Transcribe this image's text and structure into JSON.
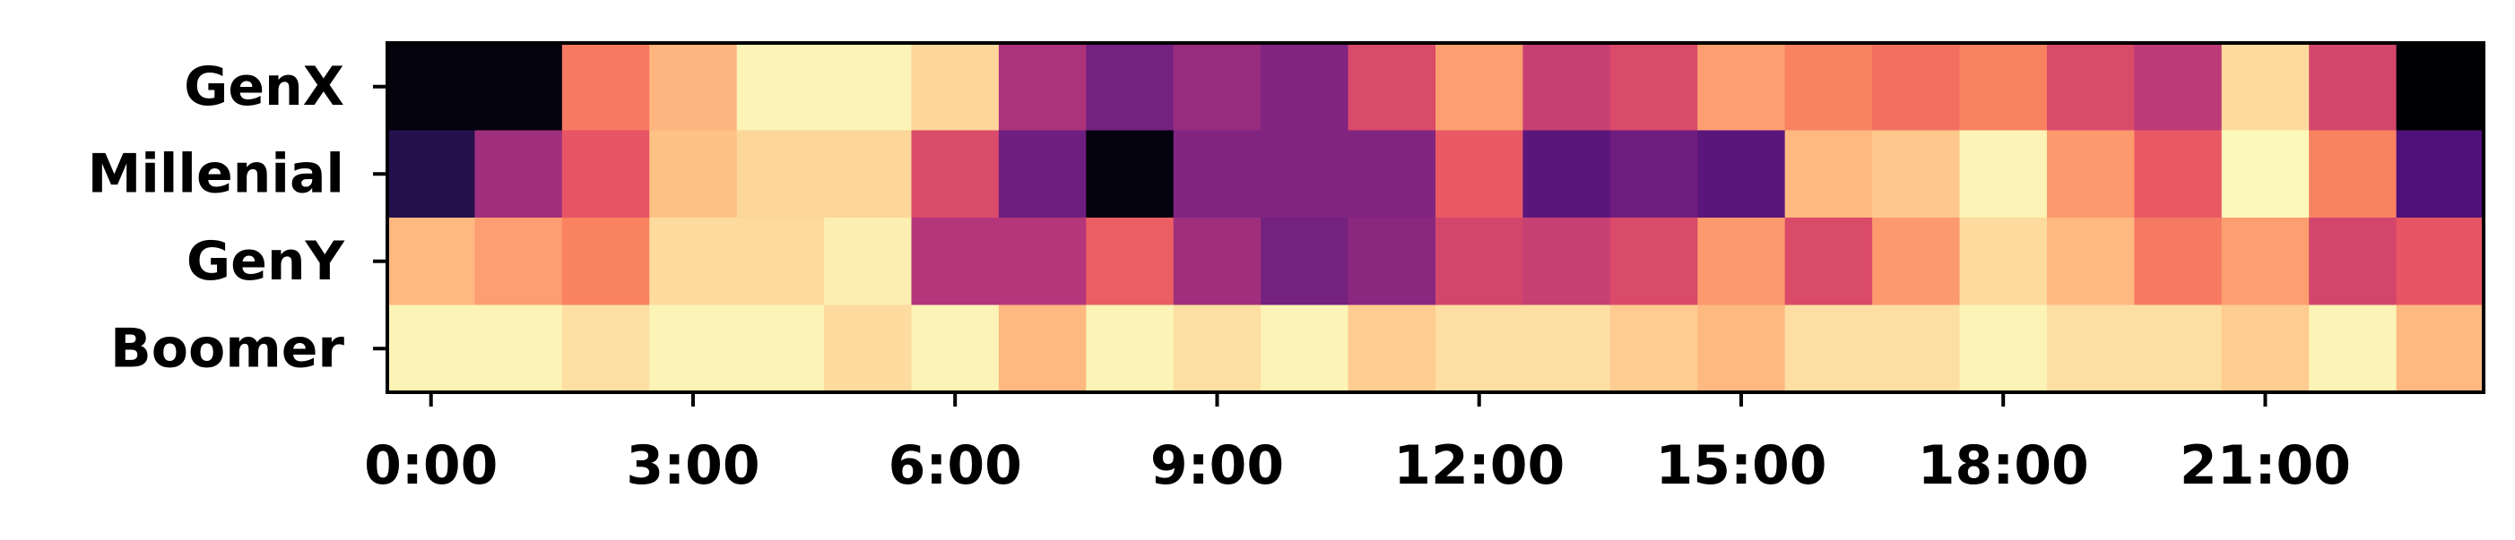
{
  "chart_data": {
    "type": "heatmap",
    "colormap": "magma",
    "value_range": [
      0,
      1
    ],
    "rows": [
      "GenX",
      "Millenial",
      "GenY",
      "Boomer"
    ],
    "columns": [
      "0:00",
      "1:00",
      "2:00",
      "3:00",
      "4:00",
      "5:00",
      "6:00",
      "7:00",
      "8:00",
      "9:00",
      "10:00",
      "11:00",
      "12:00",
      "13:00",
      "14:00",
      "15:00",
      "16:00",
      "17:00",
      "18:00",
      "19:00",
      "20:00",
      "21:00",
      "22:00",
      "23:00"
    ],
    "x_tick_labels": [
      "0:00",
      "3:00",
      "6:00",
      "9:00",
      "12:00",
      "15:00",
      "18:00",
      "21:00"
    ],
    "x_tick_columns": [
      0,
      3,
      6,
      9,
      12,
      15,
      18,
      21
    ],
    "values": [
      [
        0.02,
        0.02,
        0.72,
        0.85,
        0.98,
        0.98,
        0.92,
        0.48,
        0.35,
        0.43,
        0.38,
        0.6,
        0.8,
        0.55,
        0.6,
        0.8,
        0.74,
        0.7,
        0.74,
        0.6,
        0.52,
        0.93,
        0.58,
        0.0
      ],
      [
        0.15,
        0.45,
        0.64,
        0.88,
        0.92,
        0.92,
        0.6,
        0.33,
        0.02,
        0.38,
        0.38,
        0.38,
        0.65,
        0.28,
        0.33,
        0.28,
        0.86,
        0.89,
        0.98,
        0.79,
        0.65,
        0.99,
        0.74,
        0.25
      ],
      [
        0.86,
        0.8,
        0.74,
        0.93,
        0.93,
        0.97,
        0.5,
        0.5,
        0.66,
        0.45,
        0.35,
        0.4,
        0.58,
        0.55,
        0.6,
        0.79,
        0.6,
        0.79,
        0.93,
        0.86,
        0.72,
        0.8,
        0.58,
        0.64
      ],
      [
        0.98,
        0.98,
        0.94,
        0.98,
        0.98,
        0.93,
        0.98,
        0.86,
        0.98,
        0.94,
        0.98,
        0.9,
        0.94,
        0.94,
        0.9,
        0.86,
        0.94,
        0.94,
        0.98,
        0.94,
        0.94,
        0.9,
        0.98,
        0.86
      ]
    ]
  }
}
